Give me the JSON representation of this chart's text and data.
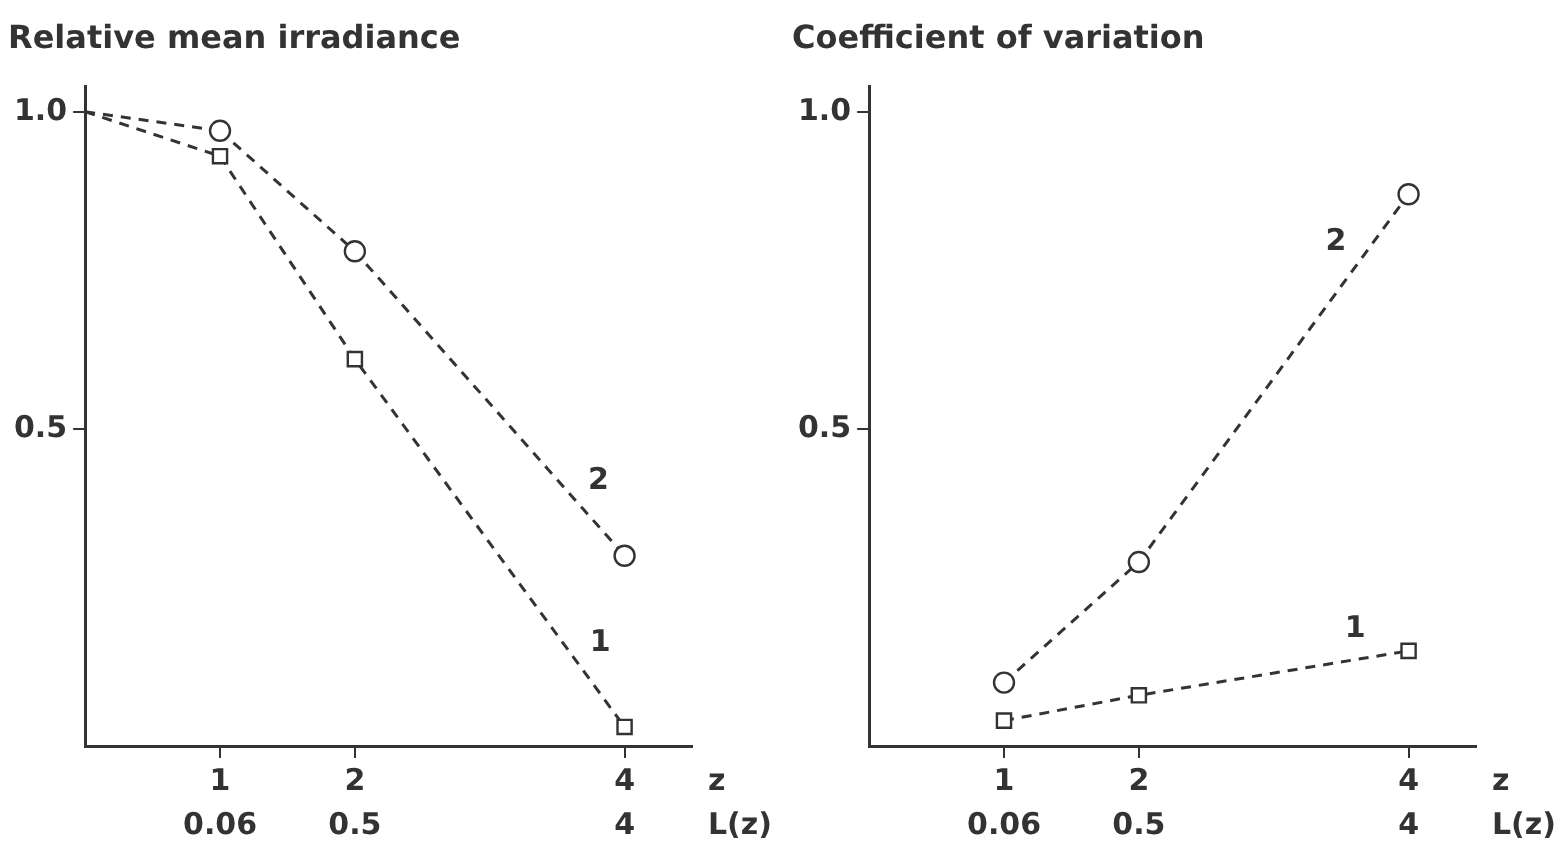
{
  "chart_data": [
    {
      "type": "line",
      "title": "Relative mean irradiance",
      "xlabel": "z",
      "xlim": [
        0,
        4.5
      ],
      "xticks": [
        1,
        2,
        4
      ],
      "annotations": [
        "0.06",
        "0.5",
        "4",
        "L(z)"
      ],
      "ylim": [
        0,
        1.04
      ],
      "yticks": [
        0.5,
        {
          "value": 1,
          "label": "1.0"
        }
      ],
      "grid": false,
      "legend": false,
      "line_style": "dashed",
      "series": [
        {
          "name": "1",
          "color": "#333333",
          "marker": "square",
          "x": [
            1,
            2,
            4
          ],
          "values": [
            0.93,
            0.61,
            0.03
          ]
        },
        {
          "name": "2",
          "color": "#333333",
          "marker": "circle",
          "x": [
            1,
            2,
            4
          ],
          "values": [
            0.97,
            0.78,
            0.3
          ]
        },
        {
          "color": "#333333",
          "marker": "none",
          "x": [
            0,
            1
          ],
          "values": [
            1.0,
            0.93
          ]
        },
        {
          "color": "#333333",
          "marker": "none",
          "x": [
            0,
            1
          ],
          "values": [
            1.0,
            0.97
          ]
        }
      ]
    },
    {
      "type": "line",
      "title": "Coefficient of variation",
      "xlabel": "z",
      "xlim": [
        0,
        4.5
      ],
      "xticks": [
        1,
        2,
        4
      ],
      "annotations": [
        "0.06",
        "0.5",
        "4",
        "L(z)"
      ],
      "ylim": [
        0,
        1.04
      ],
      "yticks": [
        0.5,
        {
          "value": 1,
          "label": "1.0"
        }
      ],
      "grid": false,
      "legend": false,
      "line_style": "dashed",
      "series": [
        {
          "name": "1",
          "color": "#333333",
          "marker": "square",
          "x": [
            1,
            2,
            4
          ],
          "values": [
            0.04,
            0.08,
            0.15
          ]
        },
        {
          "name": "2",
          "color": "#333333",
          "marker": "circle",
          "x": [
            1,
            2,
            4
          ],
          "values": [
            0.1,
            0.29,
            0.87
          ]
        }
      ]
    }
  ]
}
